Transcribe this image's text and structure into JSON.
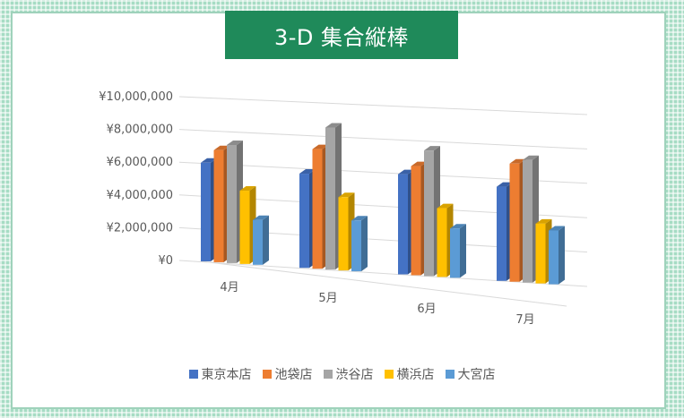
{
  "chart_data": {
    "type": "bar",
    "subtype": "3d-clustered-column",
    "title": "3-D 集合縦棒",
    "categories": [
      "4月",
      "5月",
      "6月",
      "7月"
    ],
    "y_tick_labels": [
      "¥0",
      "¥2,000,000",
      "¥4,000,000",
      "¥6,000,000",
      "¥8,000,000",
      "¥10,000,000"
    ],
    "ylim": [
      0,
      10000000
    ],
    "grid": true,
    "legend_position": "bottom",
    "series": [
      {
        "name": "東京本店",
        "color": "#4472c4",
        "values": [
          6600000,
          6300000,
          6700000,
          6300000
        ]
      },
      {
        "name": "池袋店",
        "color": "#ed7d31",
        "values": [
          7500000,
          8000000,
          7300000,
          7900000
        ]
      },
      {
        "name": "渋谷店",
        "color": "#a5a5a5",
        "values": [
          7900000,
          9500000,
          8400000,
          8200000
        ]
      },
      {
        "name": "横浜店",
        "color": "#ffc000",
        "values": [
          4900000,
          4900000,
          4600000,
          4000000
        ]
      },
      {
        "name": "大宮店",
        "color": "#5b9bd5",
        "values": [
          3000000,
          3400000,
          3300000,
          3600000
        ]
      }
    ]
  }
}
